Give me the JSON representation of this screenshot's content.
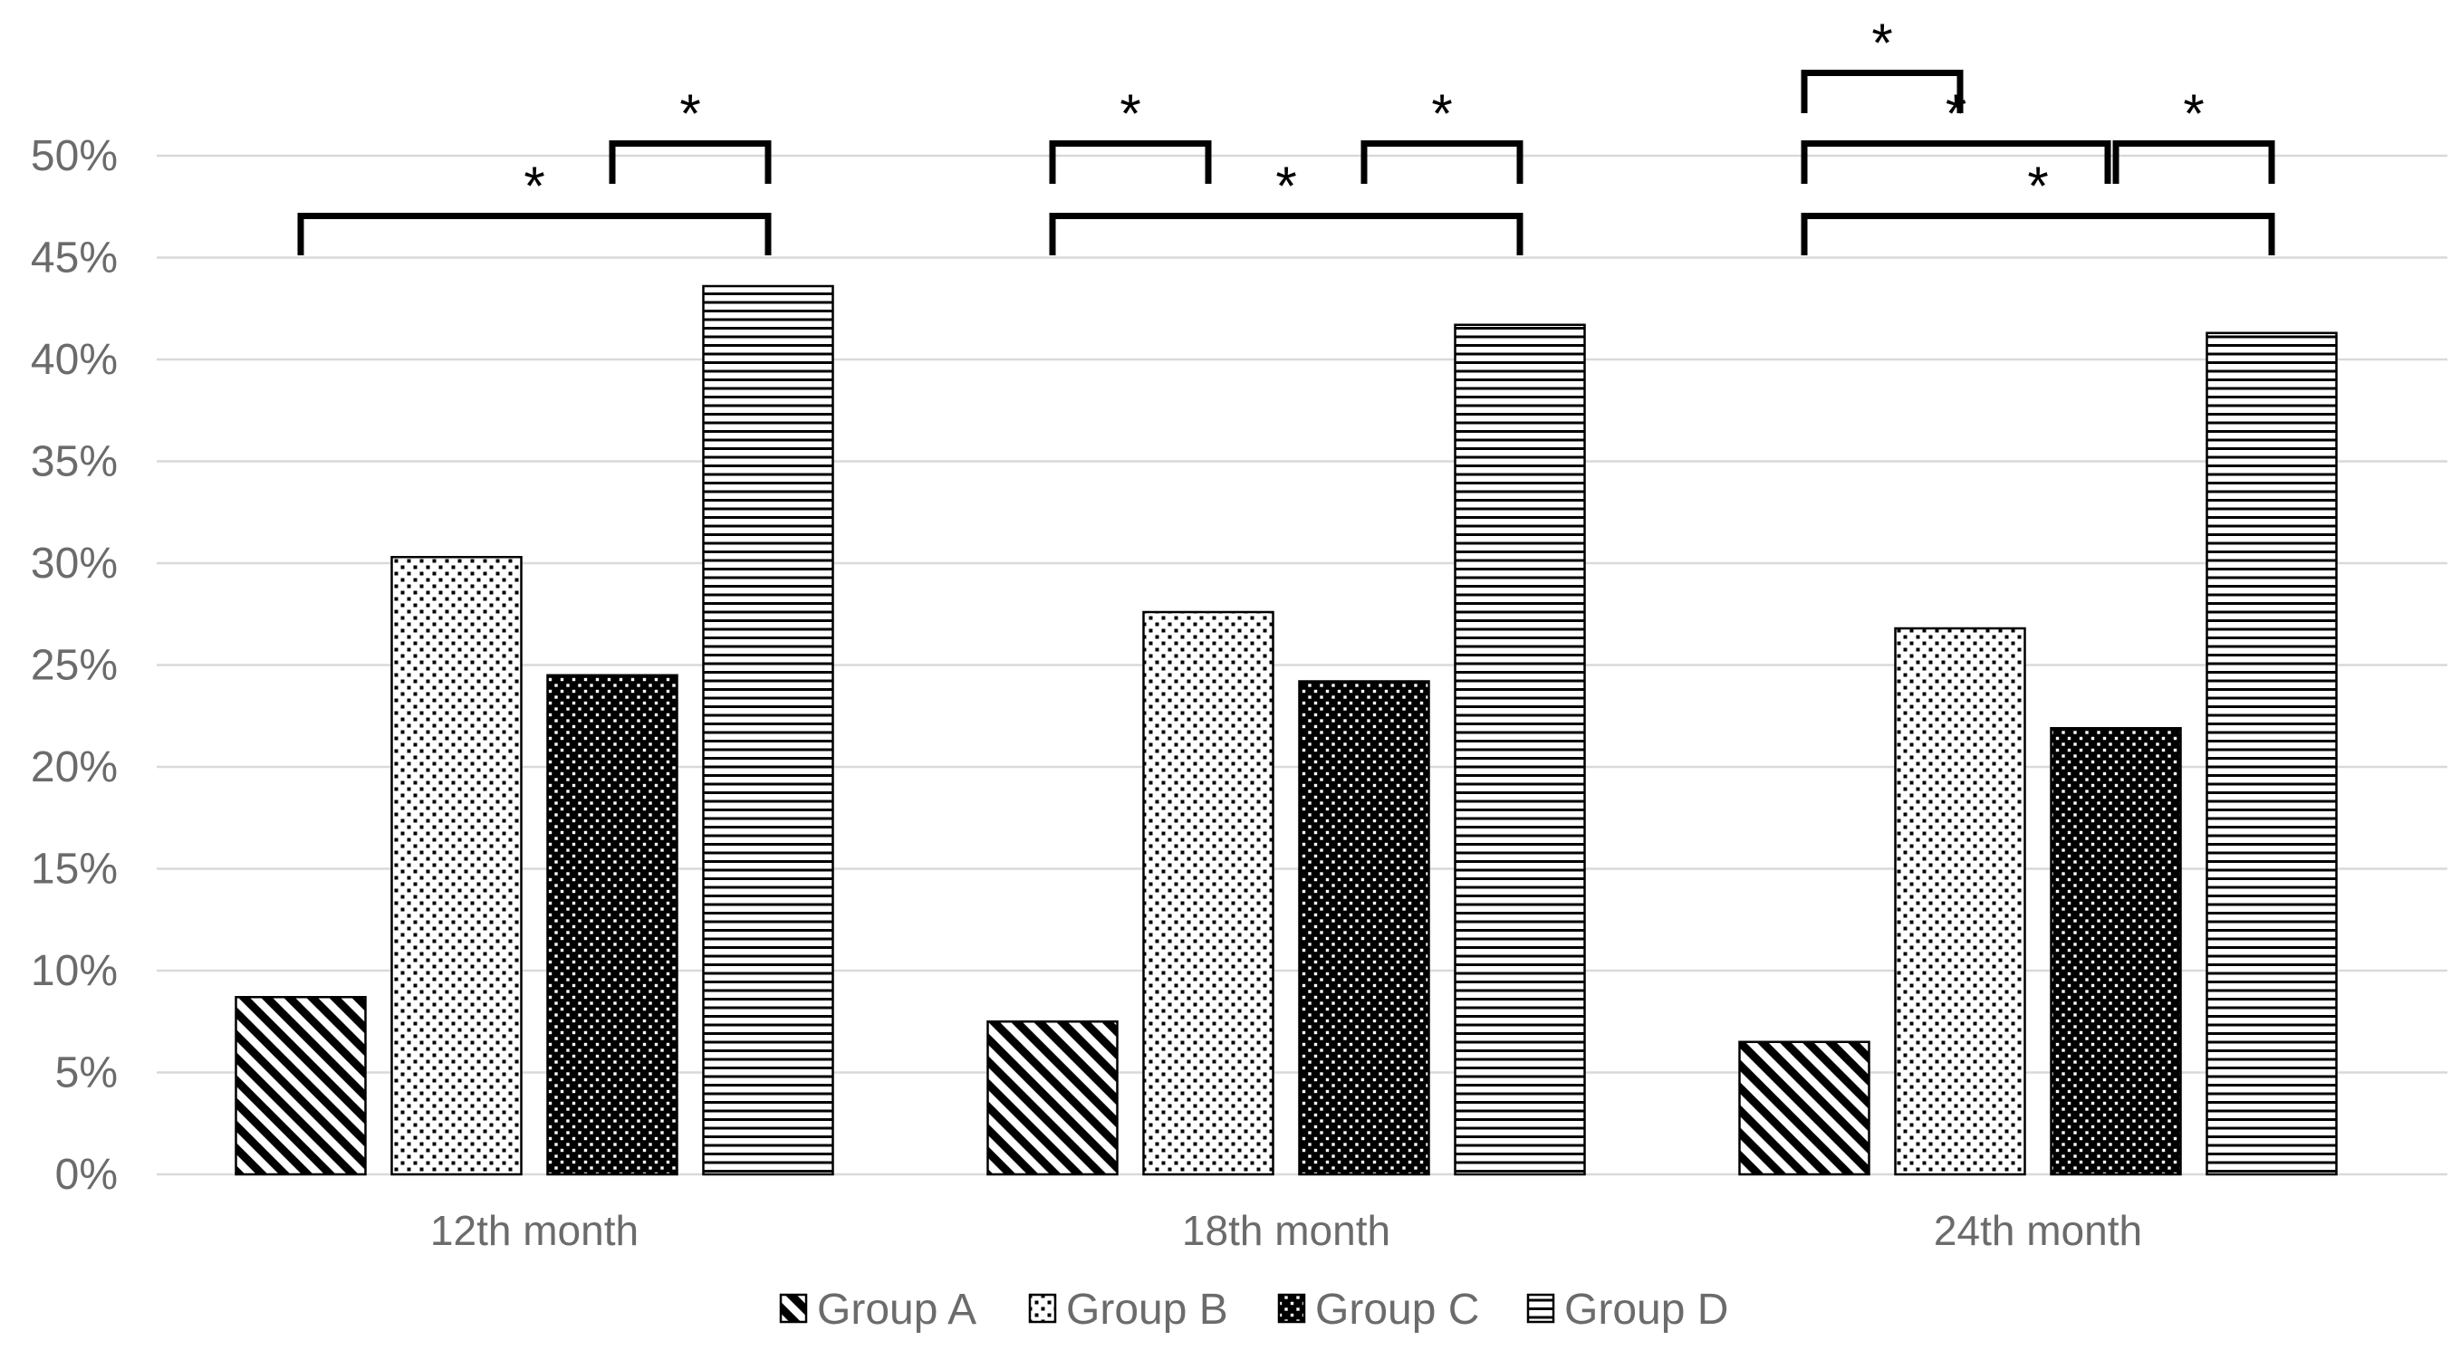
{
  "chart_data": {
    "type": "bar",
    "title": "",
    "categories": [
      "12th month",
      "18th month",
      "24th month"
    ],
    "series": [
      {
        "name": "Group A",
        "pattern": "diagonal-stripes",
        "values": [
          8.7,
          7.5,
          6.5
        ]
      },
      {
        "name": "Group B",
        "pattern": "light-dots",
        "values": [
          30.3,
          27.6,
          26.8
        ]
      },
      {
        "name": "Group C",
        "pattern": "dark-dots",
        "values": [
          24.5,
          24.2,
          21.9
        ]
      },
      {
        "name": "Group D",
        "pattern": "horizontal-lines",
        "values": [
          43.6,
          41.7,
          41.3
        ]
      }
    ],
    "y_axis": {
      "min": 0,
      "max": 50,
      "step": 5,
      "tick_labels": [
        "0%",
        "5%",
        "10%",
        "15%",
        "20%",
        "25%",
        "30%",
        "35%",
        "40%",
        "45%",
        "50%"
      ]
    },
    "xlabel": "",
    "ylabel": "",
    "grid": true,
    "legend_position": "bottom",
    "legend_items": [
      "Group A",
      "Group B",
      "Group C",
      "Group D"
    ],
    "significance_brackets": [
      {
        "category": "12th month",
        "from": "Group C",
        "to": "Group D",
        "level": 1,
        "label": "*"
      },
      {
        "category": "12th month",
        "from": "Group A",
        "to": "Group D",
        "level": 2,
        "label": "*"
      },
      {
        "category": "18th month",
        "from": "Group A",
        "to": "Group B",
        "level": 1,
        "label": "*"
      },
      {
        "category": "18th month",
        "from": "Group C",
        "to": "Group D",
        "level": 1,
        "label": "*"
      },
      {
        "category": "18th month",
        "from": "Group A",
        "to": "Group D",
        "level": 2,
        "label": "*"
      },
      {
        "category": "24th month",
        "from": "Group A",
        "to": "Group B",
        "level": 0,
        "label": "*"
      },
      {
        "category": "24th month",
        "from": "Group A",
        "to": "Group C",
        "level": 1,
        "label": "*",
        "end_inset": 9
      },
      {
        "category": "24th month",
        "from": "Group C",
        "to": "Group D",
        "level": 1,
        "label": "*"
      },
      {
        "category": "24th month",
        "from": "Group A",
        "to": "Group D",
        "level": 2,
        "label": "*"
      }
    ],
    "colors": {
      "ink": "#000000",
      "background": "#ffffff",
      "gridline": "#d9d9d9",
      "label_text": "#6b6b6b"
    }
  }
}
